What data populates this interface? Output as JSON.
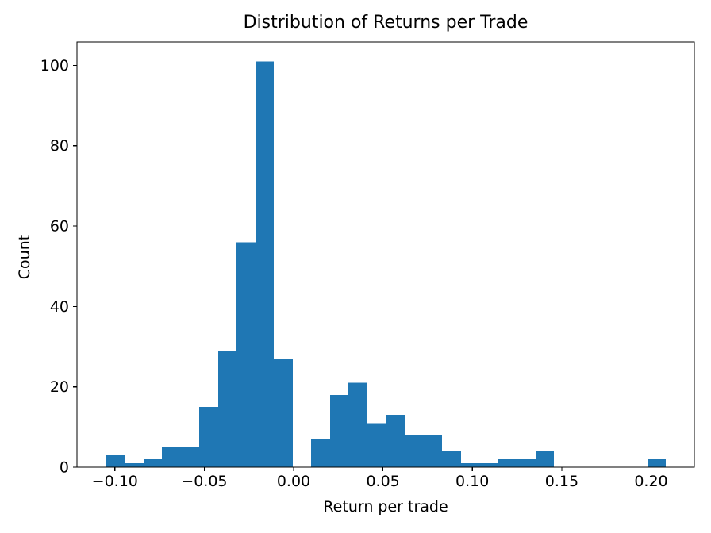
{
  "page": {
    "background": "#ffffff"
  },
  "chart_data": {
    "type": "bar",
    "subtype": "histogram",
    "title": "Distribution of Returns per Trade",
    "xlabel": "Return per trade",
    "ylabel": "Count",
    "bar_color": "#1f77b4",
    "axis_color": "#000000",
    "text_color": "#000000",
    "background_color": "#ffffff",
    "grid": false,
    "legend_position": "none",
    "xlim": [
      -0.1212,
      0.2242
    ],
    "ylim": [
      0,
      105.8
    ],
    "xticks": [
      {
        "value": -0.1,
        "label": "−0.10"
      },
      {
        "value": -0.05,
        "label": "−0.05"
      },
      {
        "value": 0.0,
        "label": "0.00"
      },
      {
        "value": 0.05,
        "label": "0.05"
      },
      {
        "value": 0.1,
        "label": "0.10"
      },
      {
        "value": 0.15,
        "label": "0.15"
      },
      {
        "value": 0.2,
        "label": "0.20"
      }
    ],
    "yticks": [
      {
        "value": 0,
        "label": "0"
      },
      {
        "value": 20,
        "label": "20"
      },
      {
        "value": 40,
        "label": "40"
      },
      {
        "value": 60,
        "label": "60"
      },
      {
        "value": 80,
        "label": "80"
      },
      {
        "value": 100,
        "label": "100"
      }
    ],
    "bins": 30,
    "bin_edges": [
      -0.105,
      -0.0946,
      -0.0841,
      -0.0737,
      -0.0632,
      -0.0528,
      -0.0423,
      -0.0319,
      -0.0214,
      -0.011,
      -0.0005,
      0.0099,
      0.0204,
      0.0308,
      0.0413,
      0.0517,
      0.0622,
      0.0726,
      0.083,
      0.0935,
      0.1039,
      0.1144,
      0.1248,
      0.1353,
      0.1457,
      0.1562,
      0.1666,
      0.1771,
      0.1875,
      0.198,
      0.2084
    ],
    "counts": [
      3,
      1,
      2,
      5,
      5,
      15,
      29,
      56,
      101,
      27,
      0,
      7,
      18,
      21,
      11,
      13,
      8,
      8,
      4,
      1,
      1,
      2,
      2,
      4,
      0,
      0,
      0,
      0,
      0,
      2
    ]
  }
}
